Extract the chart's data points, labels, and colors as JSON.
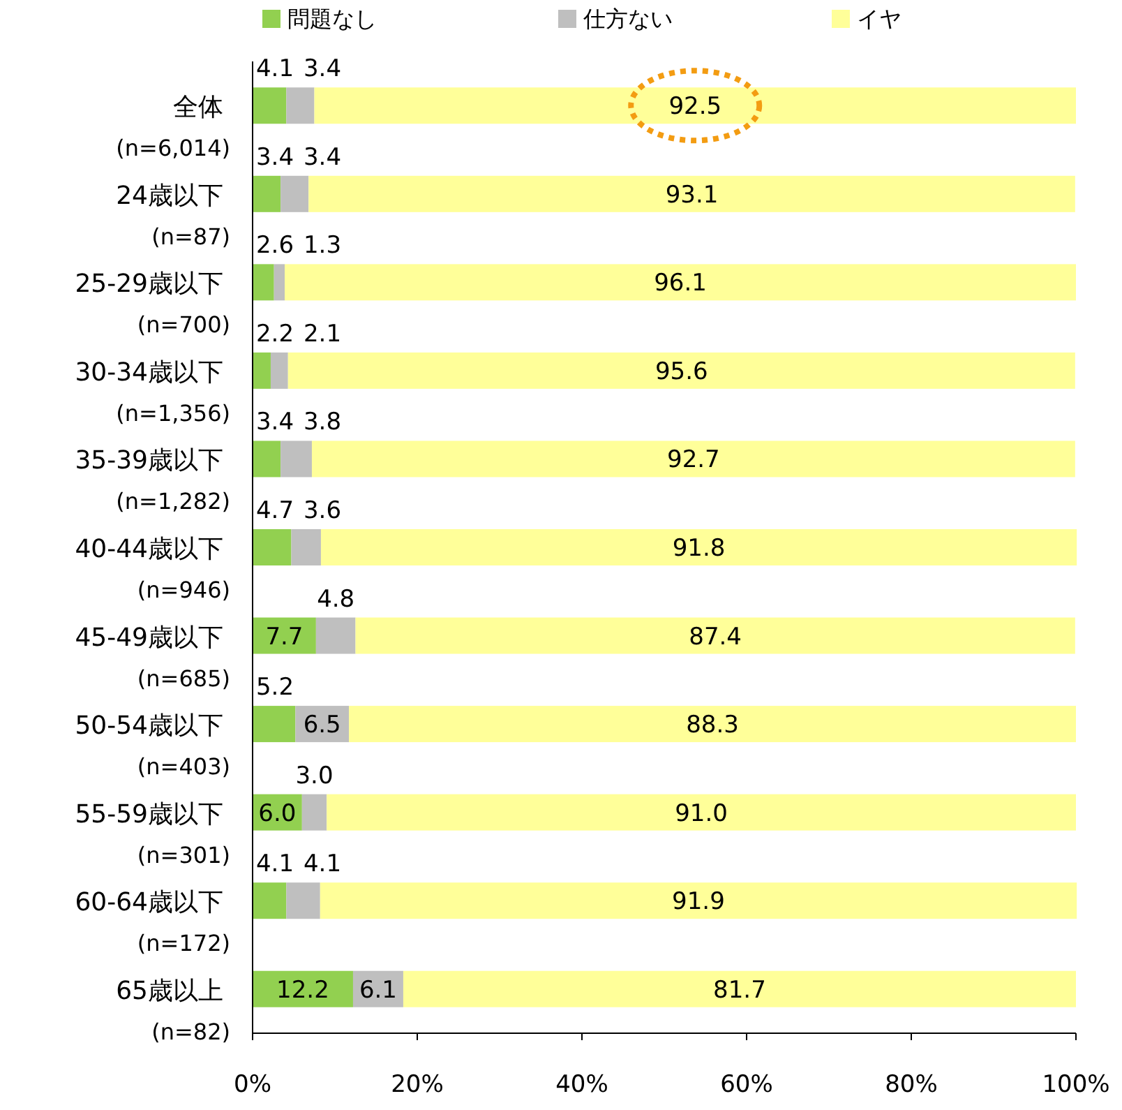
{
  "chart_data": {
    "type": "bar",
    "orientation": "horizontal",
    "stacked": true,
    "categories": [
      "全体\n(n=6,014)",
      "24歳以下\n(n=87)",
      "25-29歳以下\n(n=700)",
      "30-34歳以下\n(n=1,356)",
      "35-39歳以下\n(n=1,282)",
      "40-44歳以下\n(n=946)",
      "45-49歳以下\n(n=685)",
      "50-54歳以下\n(n=403)",
      "55-59歳以下\n(n=301)",
      "60-64歳以下\n(n=172)",
      "65歳以上\n(n=82)"
    ],
    "series": [
      {
        "name": "問題なし",
        "color": "#92d050",
        "values": [
          4.1,
          3.4,
          2.6,
          2.2,
          3.4,
          4.7,
          7.7,
          5.2,
          6.0,
          4.1,
          12.2
        ],
        "value_labels": [
          "4.1",
          "3.4",
          "2.6",
          "2.2",
          "3.4",
          "4.7",
          "7.7",
          "5.2",
          "6.0",
          "4.1",
          "12.2"
        ]
      },
      {
        "name": "仕方ない",
        "color": "#bfbfbf",
        "values": [
          3.4,
          3.4,
          1.3,
          2.1,
          3.8,
          3.6,
          4.8,
          6.5,
          3.0,
          4.1,
          6.1
        ],
        "value_labels": [
          "3.4",
          "3.4",
          "1.3",
          "2.1",
          "3.8",
          "3.6",
          "4.8",
          "6.5",
          "3.0",
          "4.1",
          "6.1"
        ]
      },
      {
        "name": "イヤ",
        "color": "#ffff99",
        "values": [
          92.5,
          93.1,
          96.1,
          95.6,
          92.7,
          91.8,
          87.4,
          88.3,
          91.0,
          91.9,
          81.7
        ],
        "value_labels": [
          "92.5",
          "93.1",
          "96.1",
          "95.6",
          "92.7",
          "91.8",
          "87.4",
          "88.3",
          "91.0",
          "91.9",
          "81.7"
        ]
      }
    ],
    "xlim": [
      0,
      100
    ],
    "xticks": [
      {
        "value": 0,
        "label": "0%"
      },
      {
        "value": 20,
        "label": "20%"
      },
      {
        "value": 40,
        "label": "40%"
      },
      {
        "value": 60,
        "label": "60%"
      },
      {
        "value": 80,
        "label": "80%"
      },
      {
        "value": 100,
        "label": "100%"
      }
    ],
    "legend": "top",
    "grid": false
  }
}
